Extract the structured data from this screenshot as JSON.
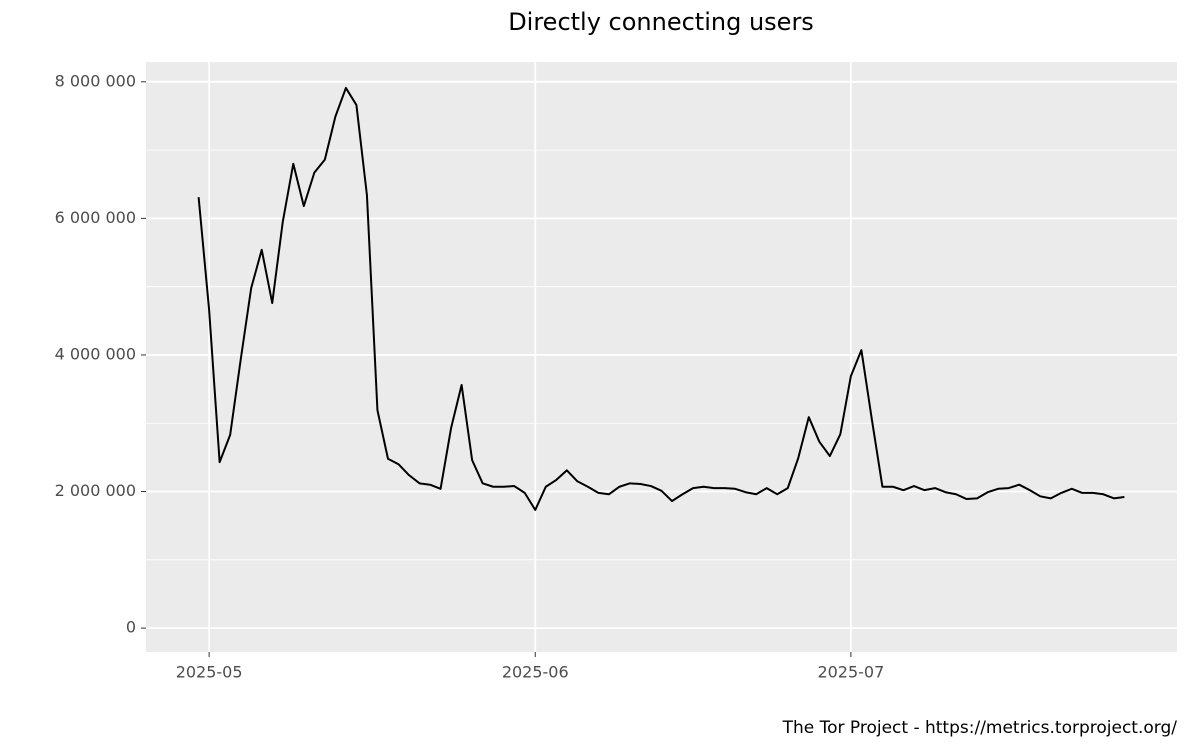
{
  "chart_data": {
    "type": "line",
    "title": "Directly connecting users",
    "caption": "The Tor Project - https://metrics.torproject.org/",
    "x": [
      "2025-04-30",
      "2025-05-01",
      "2025-05-02",
      "2025-05-03",
      "2025-05-04",
      "2025-05-05",
      "2025-05-06",
      "2025-05-07",
      "2025-05-08",
      "2025-05-09",
      "2025-05-10",
      "2025-05-11",
      "2025-05-12",
      "2025-05-13",
      "2025-05-14",
      "2025-05-15",
      "2025-05-16",
      "2025-05-17",
      "2025-05-18",
      "2025-05-19",
      "2025-05-20",
      "2025-05-21",
      "2025-05-22",
      "2025-05-23",
      "2025-05-24",
      "2025-05-25",
      "2025-05-26",
      "2025-05-27",
      "2025-05-28",
      "2025-05-29",
      "2025-05-30",
      "2025-05-31",
      "2025-06-01",
      "2025-06-02",
      "2025-06-03",
      "2025-06-04",
      "2025-06-05",
      "2025-06-06",
      "2025-06-07",
      "2025-06-08",
      "2025-06-09",
      "2025-06-10",
      "2025-06-11",
      "2025-06-12",
      "2025-06-13",
      "2025-06-14",
      "2025-06-15",
      "2025-06-16",
      "2025-06-17",
      "2025-06-18",
      "2025-06-19",
      "2025-06-20",
      "2025-06-21",
      "2025-06-22",
      "2025-06-23",
      "2025-06-24",
      "2025-06-25",
      "2025-06-26",
      "2025-06-27",
      "2025-06-28",
      "2025-06-29",
      "2025-06-30",
      "2025-07-01",
      "2025-07-02",
      "2025-07-03",
      "2025-07-04",
      "2025-07-05",
      "2025-07-06",
      "2025-07-07",
      "2025-07-08",
      "2025-07-09",
      "2025-07-10",
      "2025-07-11",
      "2025-07-12",
      "2025-07-13",
      "2025-07-14",
      "2025-07-15",
      "2025-07-16",
      "2025-07-17",
      "2025-07-18",
      "2025-07-19",
      "2025-07-20",
      "2025-07-21",
      "2025-07-22",
      "2025-07-23",
      "2025-07-24",
      "2025-07-25",
      "2025-07-26",
      "2025-07-27"
    ],
    "series": [
      {
        "name": "Directly connecting users",
        "color": "#000000",
        "values": [
          6310000,
          4660000,
          2430000,
          2830000,
          3930000,
          4980000,
          5540000,
          4760000,
          5950000,
          6800000,
          6180000,
          6670000,
          6860000,
          7490000,
          7910000,
          7660000,
          6340000,
          3190000,
          2480000,
          2400000,
          2240000,
          2120000,
          2100000,
          2040000,
          2930000,
          3560000,
          2460000,
          2120000,
          2070000,
          2070000,
          2080000,
          1980000,
          1730000,
          2070000,
          2170000,
          2310000,
          2150000,
          2070000,
          1980000,
          1960000,
          2070000,
          2120000,
          2110000,
          2080000,
          2010000,
          1860000,
          1960000,
          2050000,
          2070000,
          2050000,
          2050000,
          2040000,
          1990000,
          1960000,
          2050000,
          1960000,
          2050000,
          2490000,
          3090000,
          2730000,
          2520000,
          2840000,
          3690000,
          4070000,
          3050000,
          2070000,
          2070000,
          2020000,
          2080000,
          2020000,
          2050000,
          1990000,
          1960000,
          1890000,
          1900000,
          1990000,
          2040000,
          2050000,
          2100000,
          2020000,
          1930000,
          1900000,
          1980000,
          2040000,
          1980000,
          1980000,
          1960000,
          1900000,
          1920000
        ]
      }
    ],
    "xlim": [
      "2025-04-25",
      "2025-08-01"
    ],
    "xticks": [
      {
        "value": "2025-05-01",
        "label": "2025-05"
      },
      {
        "value": "2025-06-01",
        "label": "2025-06"
      },
      {
        "value": "2025-07-01",
        "label": "2025-07"
      }
    ],
    "ylim": [
      -350000,
      8290000
    ],
    "yticks": [
      0,
      {
        "value": 2000000,
        "label": "2 000 000"
      },
      {
        "value": 4000000,
        "label": "4 000 000"
      },
      {
        "value": 6000000,
        "label": "6 000 000"
      },
      {
        "value": 8000000,
        "label": "8 000 000"
      }
    ],
    "grid": true
  }
}
